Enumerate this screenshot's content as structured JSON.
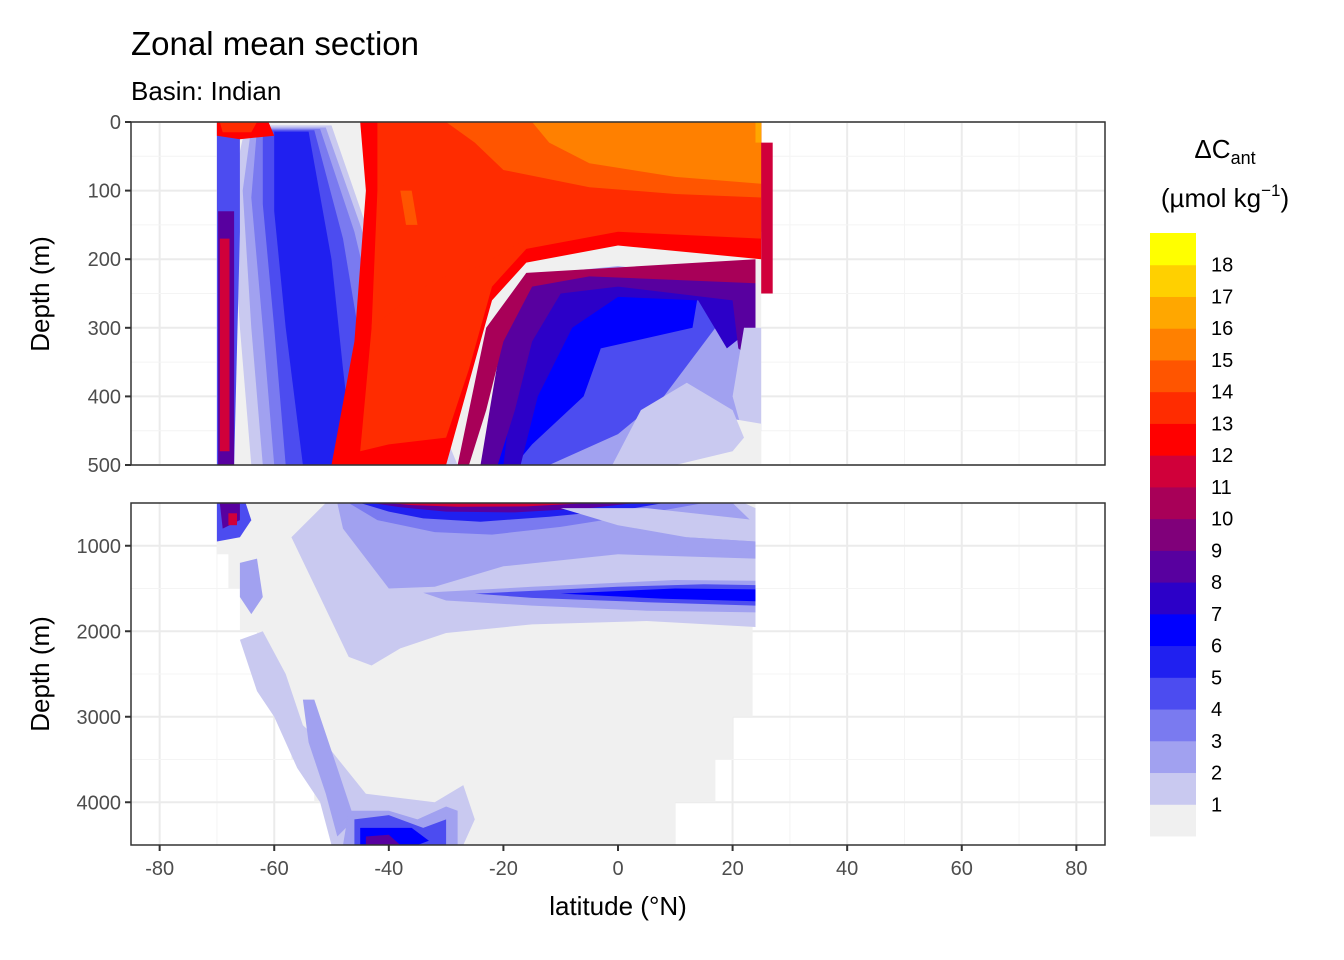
{
  "chart_data": {
    "type": "heatmap",
    "title": "Zonal mean section",
    "subtitle": "Basin: Indian",
    "xlabel": "latitude (°N)",
    "ylabel": "Depth (m)",
    "xlim": [
      -85,
      85
    ],
    "x_ticks": [
      "-80",
      "-60",
      "-40",
      "-20",
      "0",
      "20",
      "40",
      "60",
      "80"
    ],
    "panels": [
      {
        "name": "upper",
        "ylim": [
          0,
          500
        ],
        "y_ticks": [
          "0",
          "100",
          "200",
          "300",
          "400",
          "500"
        ]
      },
      {
        "name": "lower",
        "ylim": [
          500,
          4500
        ],
        "y_ticks": [
          "1000",
          "2000",
          "3000",
          "4000"
        ]
      }
    ],
    "data_extent_lat": [
      -70,
      25
    ],
    "legend": {
      "title_main": "ΔC",
      "title_sub": "ant",
      "unit_main": "(µmol kg",
      "unit_sup": "−1",
      "unit_close": ")",
      "placement": "right",
      "levels": [
        "1",
        "2",
        "3",
        "4",
        "5",
        "6",
        "7",
        "8",
        "9",
        "10",
        "11",
        "12",
        "13",
        "14",
        "15",
        "16",
        "17",
        "18"
      ],
      "colors": [
        "#f0f0f0",
        "#c9c9f0",
        "#a1a1f0",
        "#7a7af0",
        "#4c4cf0",
        "#2020f0",
        "#0000ff",
        "#2c00c8",
        "#58009f",
        "#80007a",
        "#a80058",
        "#d0003a",
        "#ff0000",
        "#ff2c00",
        "#ff5500",
        "#ff8000",
        "#ffa700",
        "#ffd000",
        "#ffff00"
      ]
    }
  }
}
